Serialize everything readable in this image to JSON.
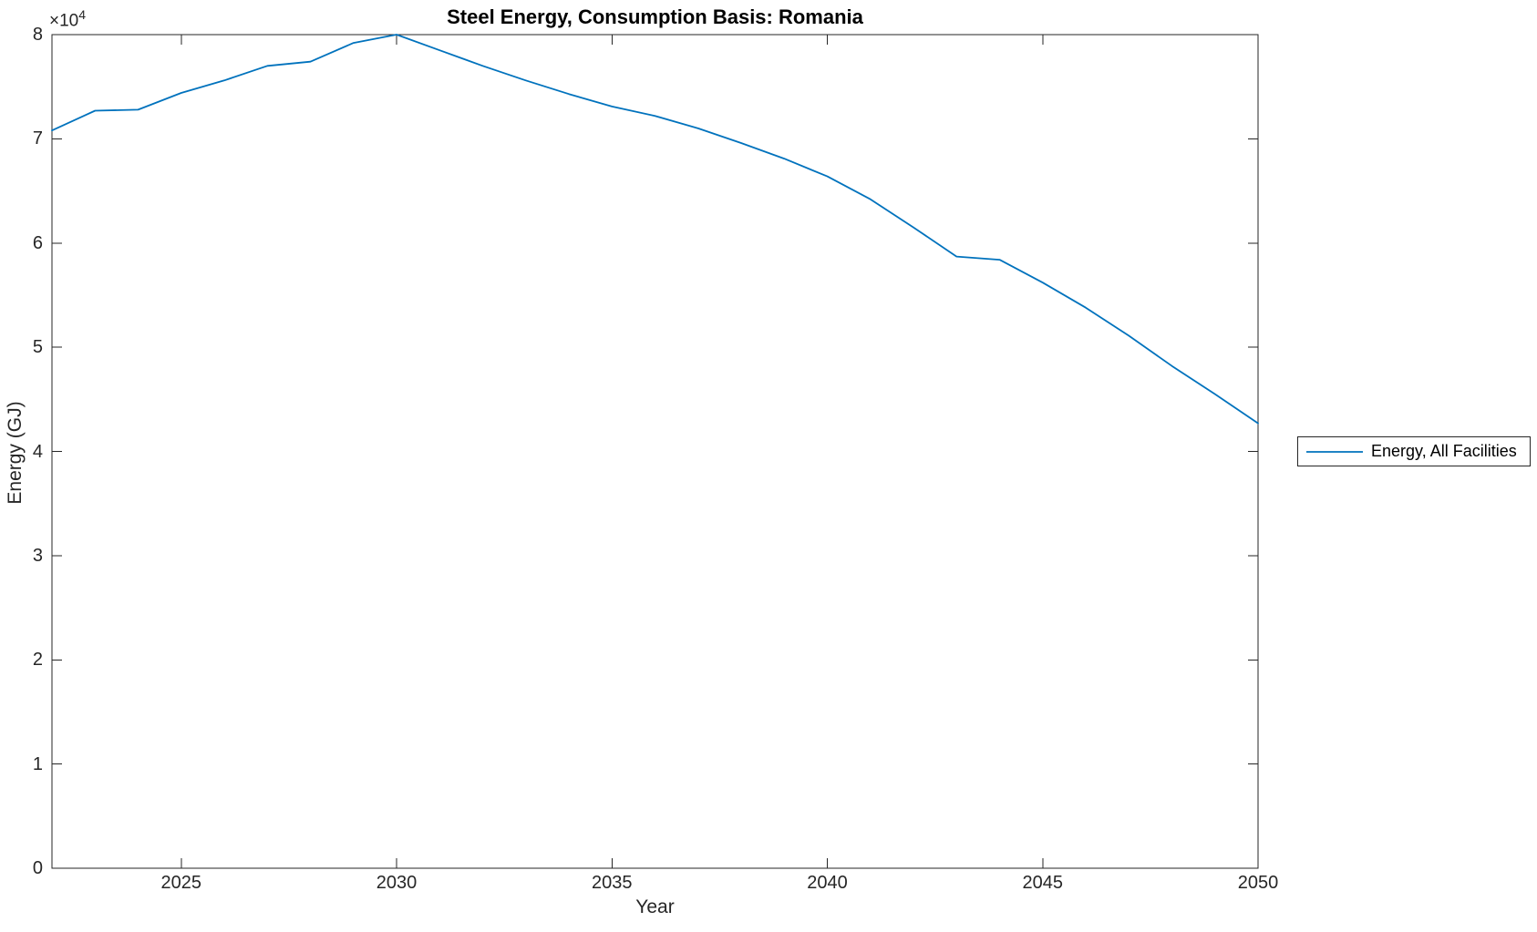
{
  "chart_data": {
    "type": "line",
    "title": "Steel Energy, Consumption Basis: Romania",
    "xlabel": "Year",
    "ylabel": "Energy (GJ)",
    "y_offset": {
      "base": "×10",
      "exp": "4"
    },
    "xlim": [
      2022,
      2050
    ],
    "ylim": [
      0,
      80000
    ],
    "xticks": [
      2025,
      2030,
      2035,
      2040,
      2045,
      2050
    ],
    "yticks": [
      0,
      10000,
      20000,
      30000,
      40000,
      50000,
      60000,
      70000,
      80000
    ],
    "ytick_labels": [
      "0",
      "1",
      "2",
      "3",
      "4",
      "5",
      "6",
      "7",
      "8"
    ],
    "grid": false,
    "legend_position": "outside-right",
    "series": [
      {
        "name": "Energy, All Facilities",
        "color": "#0072BD",
        "x": [
          2022,
          2023,
          2024,
          2025,
          2026,
          2027,
          2028,
          2029,
          2030,
          2031,
          2032,
          2033,
          2034,
          2035,
          2036,
          2037,
          2038,
          2039,
          2040,
          2041,
          2042,
          2043,
          2044,
          2045,
          2046,
          2047,
          2048,
          2049,
          2050
        ],
        "y": [
          70800,
          72700,
          72800,
          74400,
          75600,
          77000,
          77400,
          79200,
          80000,
          78500,
          77000,
          75600,
          74300,
          73100,
          72200,
          71000,
          69600,
          68100,
          66400,
          64200,
          61500,
          58700,
          58400,
          56200,
          53800,
          51100,
          48200,
          45500,
          42700
        ]
      }
    ]
  },
  "colors": {
    "line": "#0072BD",
    "axis": "#262626",
    "title": "#000000",
    "background": "#ffffff"
  }
}
